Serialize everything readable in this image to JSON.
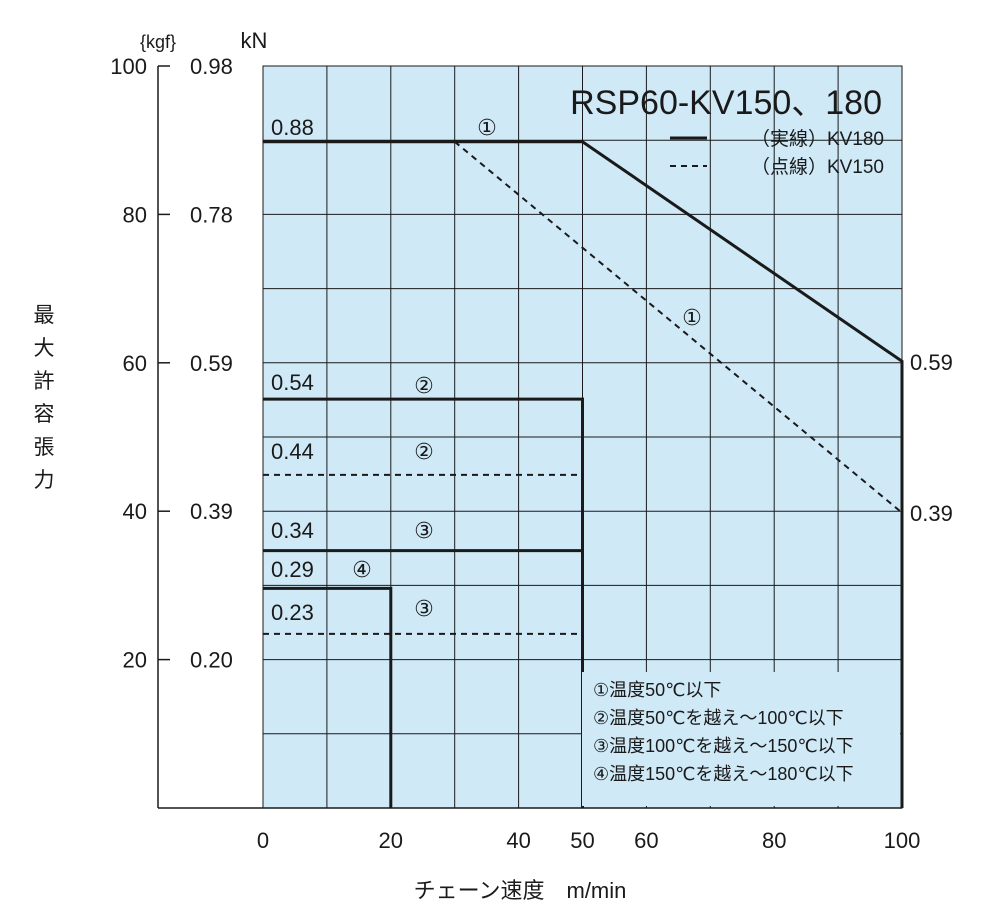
{
  "chart_data": {
    "type": "line",
    "title": "RSP60-KV150、180",
    "xlabel": "チェーン速度　m/min",
    "ylabel": "最大許容張力",
    "y_units": {
      "kgf": "{kgf}",
      "kn": "kN"
    },
    "xlim": [
      0,
      100
    ],
    "ylim_kgf": [
      0,
      100
    ],
    "grid": true,
    "legend_position": "top-right",
    "x_ticks": [
      "0",
      "20",
      "40",
      "50",
      "60",
      "80",
      "100"
    ],
    "y_ticks_kgf": [
      "100",
      "80",
      "60",
      "40",
      "20"
    ],
    "y_ticks_kn": [
      "0.98",
      "0.78",
      "0.59",
      "0.39",
      "0.20"
    ],
    "right_labels": [
      "0.59",
      "0.39"
    ],
    "legend": [
      {
        "name": "（実線）KV180",
        "style": "solid"
      },
      {
        "name": "（点線）KV150",
        "style": "dashed"
      }
    ],
    "series": [
      {
        "model": "KV180",
        "condition": "①",
        "style": "solid",
        "label": "0.88",
        "points": [
          [
            0,
            0.88
          ],
          [
            50,
            0.88
          ],
          [
            100,
            0.59
          ],
          [
            100,
            0
          ]
        ]
      },
      {
        "model": "KV150",
        "condition": "①",
        "style": "dashed",
        "points": [
          [
            30,
            0.88
          ],
          [
            100,
            0.39
          ]
        ]
      },
      {
        "model": "KV180",
        "condition": "②",
        "style": "solid",
        "label": "0.54",
        "points": [
          [
            0,
            0.54
          ],
          [
            50,
            0.54
          ],
          [
            50,
            0
          ]
        ]
      },
      {
        "model": "KV150",
        "condition": "②",
        "style": "dashed",
        "label": "0.44",
        "points": [
          [
            0,
            0.44
          ],
          [
            50,
            0.44
          ]
        ]
      },
      {
        "model": "KV180",
        "condition": "③",
        "style": "solid",
        "label": "0.34",
        "points": [
          [
            0,
            0.34
          ],
          [
            50,
            0.34
          ]
        ]
      },
      {
        "model": "KV180",
        "condition": "④",
        "style": "solid",
        "label": "0.29",
        "points": [
          [
            0,
            0.29
          ],
          [
            20,
            0.29
          ],
          [
            20,
            0
          ]
        ]
      },
      {
        "model": "KV150",
        "condition": "③",
        "style": "dashed",
        "label": "0.23",
        "points": [
          [
            0,
            0.23
          ],
          [
            50,
            0.23
          ]
        ]
      }
    ],
    "circled_labels": [
      "①",
      "①",
      "②",
      "②",
      "③",
      "④",
      "③"
    ],
    "notes": [
      "①温度50℃以下",
      "②温度50℃を越え～100℃以下",
      "③温度100℃を越え～150℃以下",
      "④温度150℃を越え～180℃以下"
    ],
    "colors": {
      "plot_bg": "#cfe9f7",
      "line": "#1a1a1a"
    }
  }
}
